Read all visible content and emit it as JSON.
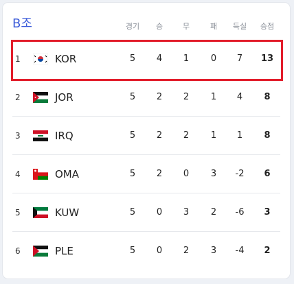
{
  "header": {
    "title": "B조"
  },
  "table": {
    "columns": [
      "경기",
      "승",
      "무",
      "패",
      "득실",
      "승점"
    ],
    "rows": [
      {
        "rank": 1,
        "team": "KOR",
        "stats": [
          5,
          4,
          1,
          0,
          7,
          13
        ]
      },
      {
        "rank": 2,
        "team": "JOR",
        "stats": [
          5,
          2,
          2,
          1,
          4,
          8
        ]
      },
      {
        "rank": 3,
        "team": "IRQ",
        "stats": [
          5,
          2,
          2,
          1,
          1,
          8
        ]
      },
      {
        "rank": 4,
        "team": "OMA",
        "stats": [
          5,
          2,
          0,
          3,
          -2,
          6
        ]
      },
      {
        "rank": 5,
        "team": "KUW",
        "stats": [
          5,
          0,
          3,
          2,
          -6,
          3
        ]
      },
      {
        "rank": 6,
        "team": "PLE",
        "stats": [
          5,
          0,
          2,
          3,
          -4,
          2
        ]
      }
    ]
  }
}
